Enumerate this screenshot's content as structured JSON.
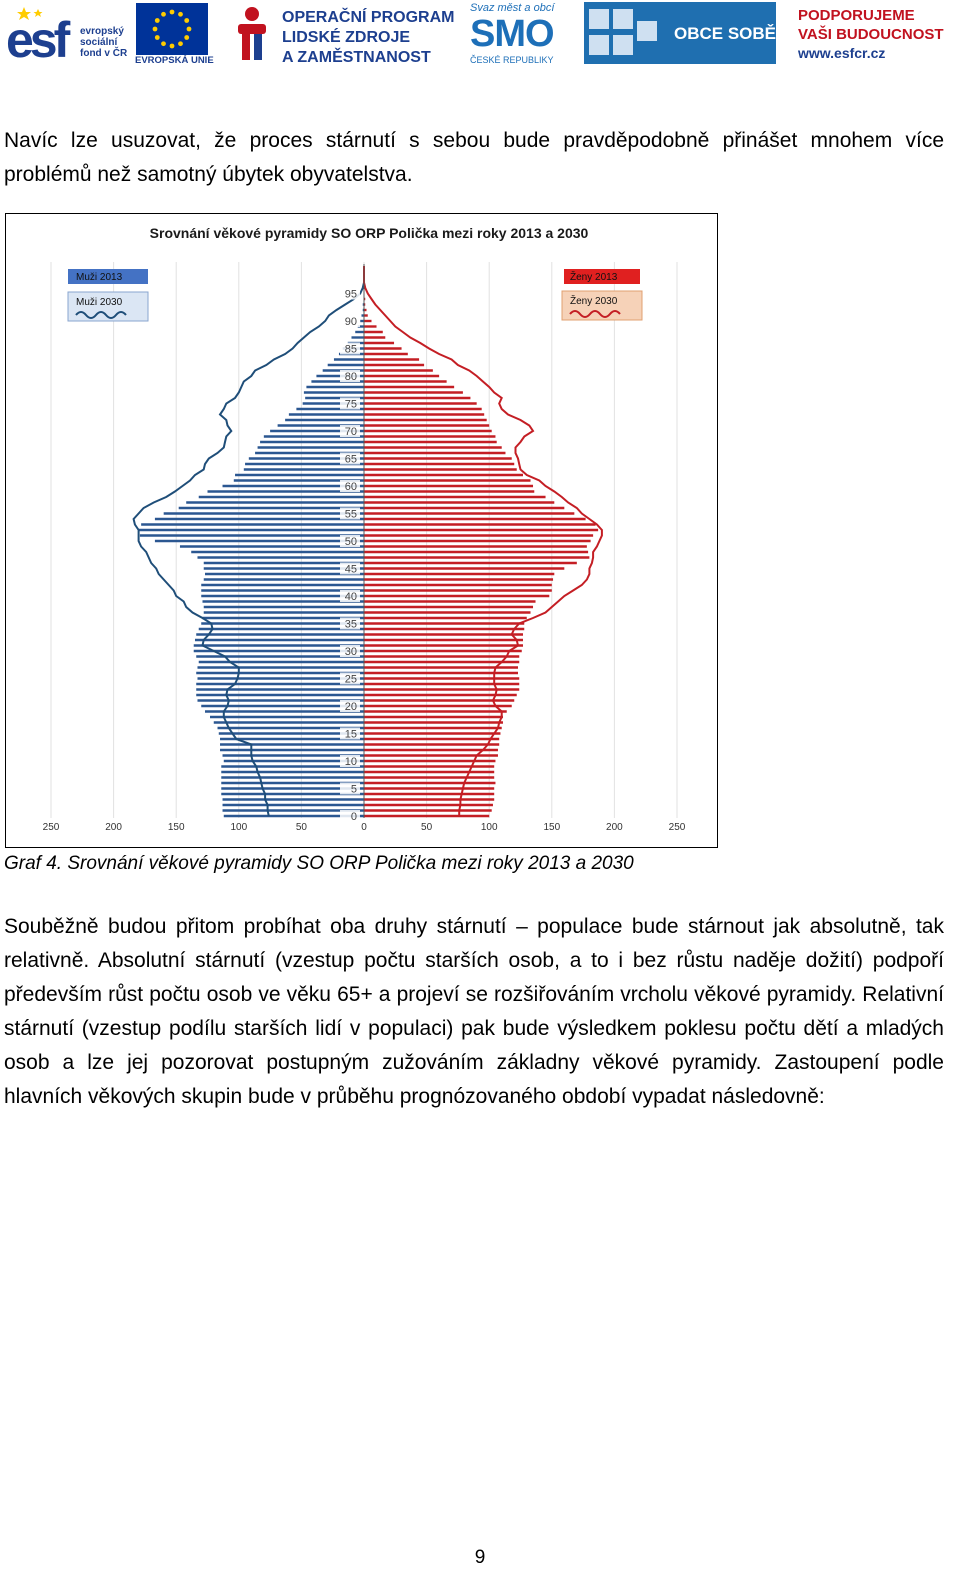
{
  "header": {
    "esf_lines": [
      "evropský",
      "sociální",
      "fond v ČR"
    ],
    "eu_label": "EVROPSKÁ UNIE",
    "op_lines": [
      "OPERAČNÍ PROGRAM",
      "LIDSKÉ ZDROJE",
      "A ZAMĚSTNANOST"
    ],
    "smo_top": "Svaz měst a obcí",
    "smo_mid": "SMO",
    "smo_bot": "ČESKÉ REPUBLIKY",
    "obce_label": "OBCE SOBĚ",
    "podp_lines": [
      "PODPORUJEME",
      "VAŠI BUDOUCNOST"
    ],
    "podp_www": "www.esfcr.cz",
    "esf_mark": "esf",
    "colors": {
      "esf_blue": "#1d3f8f",
      "eu_blue": "#003399",
      "eu_gold": "#ffcc00",
      "smo_blue": "#1d6fb8",
      "obce_blue": "#1f6fb0",
      "red": "#c1121f"
    }
  },
  "text": {
    "para1": "Navíc lze usuzovat, že proces stárnutí s sebou bude pravděpodobně přinášet mnohem více problémů než samotný úbytek obyvatelstva.",
    "caption": "Graf 4. Srovnání věkové pyramidy SO ORP Polička mezi roky 2013 a 2030",
    "para2": "Souběžně budou přitom probíhat oba druhy stárnutí – populace bude stárnout jak absolutně, tak relativně. Absolutní stárnutí (vzestup počtu starších osob, a to i bez růstu naděje dožití) podpoří především růst počtu osob ve věku 65+ a projeví se rozšiřováním vrcholu věkové pyramidy. Relativní stárnutí (vzestup podílu starších lidí v populaci) pak bude výsledkem poklesu počtu dětí a mladých osob a lze jej pozorovat postupným zužováním základny věkové pyramidy. Zastoupení podle hlavních věkových skupin bude v průběhu prognózovaného období vypadat následovně:",
    "page_number": "9"
  },
  "chart_data": {
    "type": "population-pyramid",
    "title": "Srovnání věkové pyramidy SO ORP Polička mezi roky 2013 a 2030",
    "x_ticks": [
      "250",
      "200",
      "150",
      "100",
      "50",
      "0",
      "50",
      "100",
      "150",
      "200",
      "250"
    ],
    "age_ticks": [
      0,
      5,
      10,
      15,
      20,
      25,
      30,
      35,
      40,
      45,
      50,
      55,
      60,
      65,
      70,
      75,
      80,
      85,
      90,
      95
    ],
    "xlim": [
      0,
      250
    ],
    "ylim": [
      0,
      100
    ],
    "legend_left": [
      "Muži 2013",
      "Muži 2030"
    ],
    "legend_right": [
      "Ženy 2013",
      "Ženy 2030"
    ],
    "colors": {
      "men2013": "#2b5791",
      "men2030": "#1f4e79",
      "women2013": "#c41e24",
      "women2030": "#c41e24"
    },
    "grid": true,
    "men_2013": [
      112,
      113,
      113,
      113,
      114,
      114,
      114,
      114,
      114,
      114,
      112,
      113,
      115,
      115,
      115,
      116,
      117,
      120,
      123,
      127,
      130,
      133,
      134,
      134,
      134,
      133,
      134,
      133,
      132,
      134,
      136,
      136,
      135,
      134,
      132,
      130,
      129,
      128,
      128,
      129,
      130,
      130,
      130,
      128,
      127,
      128,
      128,
      133,
      138,
      147,
      167,
      179,
      180,
      178,
      167,
      160,
      148,
      142,
      132,
      125,
      113,
      104,
      103,
      96,
      95,
      92,
      87,
      85,
      83,
      80,
      75,
      69,
      63,
      60,
      54,
      49,
      47,
      48,
      46,
      42,
      38,
      33,
      29,
      24,
      20,
      17,
      13,
      10,
      7,
      5,
      3,
      2,
      1,
      1,
      0,
      0,
      0,
      0,
      0,
      0,
      0
    ],
    "women_2013": [
      100,
      102,
      103,
      104,
      104,
      104,
      105,
      104,
      104,
      104,
      105,
      107,
      107,
      108,
      108,
      109,
      110,
      111,
      111,
      114,
      118,
      120,
      122,
      124,
      124,
      124,
      123,
      123,
      124,
      124,
      126,
      127,
      127,
      127,
      128,
      128,
      130,
      133,
      135,
      137,
      148,
      150,
      150,
      151,
      152,
      160,
      170,
      180,
      179,
      178,
      181,
      183,
      187,
      185,
      177,
      168,
      160,
      152,
      145,
      136,
      135,
      133,
      127,
      122,
      120,
      118,
      113,
      110,
      106,
      105,
      102,
      100,
      98,
      96,
      94,
      90,
      85,
      79,
      72,
      66,
      60,
      55,
      48,
      44,
      35,
      30,
      24,
      17,
      15,
      10,
      6,
      3,
      2,
      1,
      1,
      0,
      0,
      0,
      0,
      0,
      0
    ],
    "men_2030": [
      76,
      77,
      77,
      79,
      79,
      81,
      82,
      83,
      85,
      86,
      89,
      90,
      90,
      90,
      102,
      105,
      108,
      110,
      112,
      112,
      109,
      108,
      110,
      109,
      103,
      101,
      100,
      100,
      107,
      111,
      120,
      129,
      128,
      124,
      121,
      122,
      129,
      137,
      142,
      144,
      150,
      152,
      156,
      160,
      164,
      166,
      170,
      172,
      174,
      178,
      180,
      180,
      180,
      183,
      184,
      180,
      176,
      168,
      158,
      151,
      145,
      139,
      135,
      128,
      127,
      124,
      117,
      112,
      111,
      110,
      106,
      109,
      110,
      115,
      112,
      110,
      103,
      100,
      98,
      96,
      90,
      87,
      78,
      72,
      63,
      57,
      53,
      48,
      43,
      36,
      31,
      28,
      22,
      15,
      8,
      3,
      1,
      0,
      0,
      0,
      0
    ],
    "women_2030": [
      76,
      76,
      77,
      77,
      78,
      79,
      80,
      82,
      84,
      86,
      88,
      90,
      95,
      99,
      101,
      104,
      107,
      108,
      110,
      110,
      105,
      103,
      105,
      106,
      104,
      104,
      104,
      105,
      110,
      114,
      116,
      123,
      122,
      118,
      120,
      124,
      135,
      145,
      150,
      155,
      160,
      167,
      174,
      178,
      180,
      180,
      182,
      183,
      183,
      186,
      188,
      190,
      190,
      186,
      180,
      174,
      170,
      163,
      158,
      152,
      145,
      140,
      130,
      125,
      124,
      123,
      121,
      121,
      125,
      128,
      135,
      132,
      125,
      115,
      110,
      108,
      110,
      104,
      100,
      95,
      90,
      84,
      75,
      70,
      60,
      52,
      45,
      37,
      31,
      25,
      21,
      17,
      13,
      9,
      6,
      3,
      1,
      0,
      0,
      0,
      0
    ]
  }
}
